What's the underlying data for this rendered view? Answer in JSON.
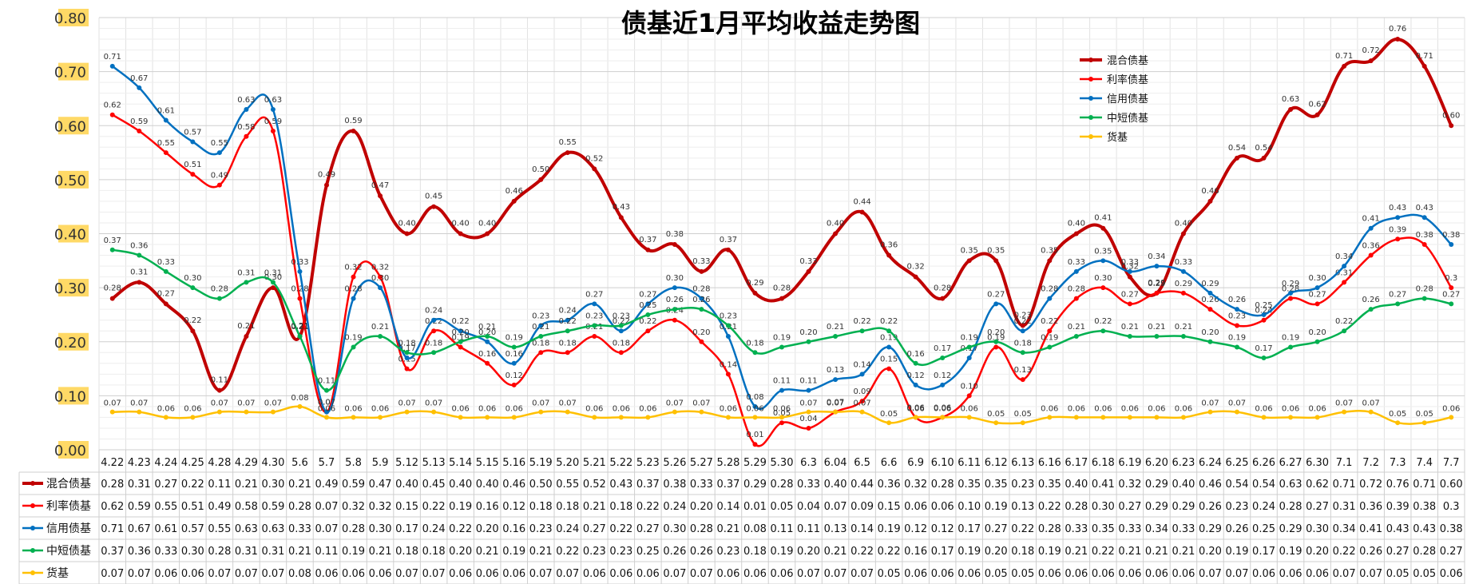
{
  "chart_data": {
    "type": "line",
    "title": "债基近1月平均收益走势图",
    "xlabel": "",
    "ylabel": "",
    "ylim": [
      0,
      0.8
    ],
    "yticks": [
      "0.00",
      "0.10",
      "0.20",
      "0.30",
      "0.40",
      "0.50",
      "0.60",
      "0.70",
      "0.80"
    ],
    "grid": true,
    "legend_position": "top-right",
    "categories": [
      "4.22",
      "4.23",
      "4.24",
      "4.25",
      "4.28",
      "4.29",
      "4.30",
      "5.6",
      "5.7",
      "5.8",
      "5.9",
      "5.12",
      "5.13",
      "5.14",
      "5.15",
      "5.16",
      "5.19",
      "5.20",
      "5.21",
      "5.22",
      "5.23",
      "5.26",
      "5.27",
      "5.28",
      "5.29",
      "5.30",
      "6.3",
      "6.04",
      "6.5",
      "6.6",
      "6.9",
      "6.10",
      "6.11",
      "6.12",
      "6.13",
      "6.16",
      "6.17",
      "6.18",
      "6.19",
      "6.20",
      "6.23",
      "6.24",
      "6.25",
      "6.26",
      "6.27",
      "6.30",
      "7.1",
      "7.2",
      "7.3",
      "7.4",
      "7.7"
    ],
    "series": [
      {
        "name": "混合债基",
        "color": "#C00000",
        "values": [
          0.28,
          0.31,
          0.27,
          0.22,
          0.11,
          0.21,
          0.3,
          0.21,
          0.49,
          0.59,
          0.47,
          0.4,
          0.45,
          0.4,
          0.4,
          0.46,
          0.5,
          0.55,
          0.52,
          0.43,
          0.37,
          0.38,
          0.33,
          0.37,
          0.29,
          0.28,
          0.33,
          0.4,
          0.44,
          0.36,
          0.32,
          0.28,
          0.35,
          0.35,
          0.23,
          0.35,
          0.4,
          0.41,
          0.32,
          0.29,
          0.4,
          0.46,
          0.54,
          0.54,
          0.63,
          0.62,
          0.71,
          0.72,
          0.76,
          0.71,
          0.6
        ],
        "labels": [
          "0.28",
          "0.31",
          "0.27",
          "0.22",
          "0.11",
          "0.21",
          "0.30",
          "0.21",
          "0.49",
          "0.59",
          "0.47",
          "0.40",
          "0.45",
          "0.40",
          "0.40",
          "0.46",
          "0.50",
          "0.55",
          "0.52",
          "0.43",
          "0.37",
          "0.38",
          "0.33",
          "0.37",
          "0.29",
          "0.28",
          "0.33",
          "0.40",
          "0.44",
          "0.36",
          "0.32",
          "0.28",
          "0.35",
          "0.35",
          "0.23",
          "0.35",
          "0.40",
          "0.41",
          "0.32",
          "0.29",
          "0.40",
          "0.46",
          "0.54",
          "0.54",
          "0.63",
          "0.62",
          "0.71",
          "0.72",
          "0.76",
          "0.71",
          "0.60"
        ]
      },
      {
        "name": "利率债基",
        "color": "#FF0000",
        "values": [
          0.62,
          0.59,
          0.55,
          0.51,
          0.49,
          0.58,
          0.59,
          0.28,
          0.07,
          0.32,
          0.32,
          0.15,
          0.22,
          0.19,
          0.16,
          0.12,
          0.18,
          0.18,
          0.21,
          0.18,
          0.22,
          0.24,
          0.2,
          0.14,
          0.01,
          0.05,
          0.04,
          0.07,
          0.09,
          0.15,
          0.06,
          0.06,
          0.1,
          0.19,
          0.13,
          0.22,
          0.28,
          0.3,
          0.27,
          0.29,
          0.29,
          0.26,
          0.23,
          0.24,
          0.28,
          0.27,
          0.31,
          0.36,
          0.39,
          0.38,
          0.3
        ],
        "labels": [
          "0.62",
          "0.59",
          "0.55",
          "0.51",
          "0.49",
          "0.58",
          "0.59",
          "0.28",
          "0.07",
          "0.32",
          "0.32",
          "0.15",
          "0.22",
          "0.19",
          "0.16",
          "0.12",
          "0.18",
          "0.18",
          "0.21",
          "0.18",
          "0.22",
          "0.24",
          "0.20",
          "0.14",
          "0.01",
          "0.05",
          "0.04",
          "0.07",
          "0.09",
          "0.15",
          "0.06",
          "0.06",
          "0.10",
          "0.19",
          "0.13",
          "0.22",
          "0.28",
          "0.30",
          "0.27",
          "0.29",
          "0.29",
          "0.26",
          "0.23",
          "0.24",
          "0.28",
          "0.27",
          "0.31",
          "0.36",
          "0.39",
          "0.38",
          "0.3"
        ]
      },
      {
        "name": "信用债基",
        "color": "#0070C0",
        "values": [
          0.71,
          0.67,
          0.61,
          0.57,
          0.55,
          0.63,
          0.63,
          0.33,
          0.07,
          0.28,
          0.3,
          0.17,
          0.24,
          0.22,
          0.2,
          0.16,
          0.23,
          0.24,
          0.27,
          0.22,
          0.27,
          0.3,
          0.28,
          0.21,
          0.08,
          0.11,
          0.11,
          0.13,
          0.14,
          0.19,
          0.12,
          0.12,
          0.17,
          0.27,
          0.22,
          0.28,
          0.33,
          0.35,
          0.33,
          0.34,
          0.33,
          0.29,
          0.26,
          0.25,
          0.29,
          0.3,
          0.34,
          0.41,
          0.43,
          0.43,
          0.38
        ],
        "labels": [
          "0.71",
          "0.67",
          "0.61",
          "0.57",
          "0.55",
          "0.63",
          "0.63",
          "0.33",
          "0.07",
          "0.28",
          "0.30",
          "0.17",
          "0.24",
          "0.22",
          "0.20",
          "0.16",
          "0.23",
          "0.24",
          "0.27",
          "0.22",
          "0.27",
          "0.30",
          "0.28",
          "0.21",
          "0.08",
          "0.11",
          "0.11",
          "0.13",
          "0.14",
          "0.19",
          "0.12",
          "0.12",
          "0.17",
          "0.27",
          "0.22",
          "0.28",
          "0.33",
          "0.35",
          "0.33",
          "0.34",
          "0.33",
          "0.29",
          "0.26",
          "0.25",
          "0.29",
          "0.30",
          "0.34",
          "0.41",
          "0.43",
          "0.43",
          "0.38"
        ]
      },
      {
        "name": "中短债基",
        "color": "#00B050",
        "values": [
          0.37,
          0.36,
          0.33,
          0.3,
          0.28,
          0.31,
          0.31,
          0.21,
          0.11,
          0.19,
          0.21,
          0.18,
          0.18,
          0.2,
          0.21,
          0.19,
          0.21,
          0.22,
          0.23,
          0.23,
          0.25,
          0.26,
          0.26,
          0.23,
          0.18,
          0.19,
          0.2,
          0.21,
          0.22,
          0.22,
          0.16,
          0.17,
          0.19,
          0.2,
          0.18,
          0.19,
          0.21,
          0.22,
          0.21,
          0.21,
          0.21,
          0.2,
          0.19,
          0.17,
          0.19,
          0.2,
          0.22,
          0.26,
          0.27,
          0.28,
          0.27
        ],
        "labels": [
          "0.37",
          "0.36",
          "0.33",
          "0.30",
          "0.28",
          "0.31",
          "0.31",
          "0.21",
          "0.11",
          "0.19",
          "0.21",
          "0.18",
          "0.18",
          "0.20",
          "0.21",
          "0.19",
          "0.21",
          "0.22",
          "0.23",
          "0.23",
          "0.25",
          "0.26",
          "0.26",
          "0.23",
          "0.18",
          "0.19",
          "0.20",
          "0.21",
          "0.22",
          "0.22",
          "0.16",
          "0.17",
          "0.19",
          "0.20",
          "0.18",
          "0.19",
          "0.21",
          "0.22",
          "0.21",
          "0.21",
          "0.21",
          "0.20",
          "0.19",
          "0.17",
          "0.19",
          "0.20",
          "0.22",
          "0.26",
          "0.27",
          "0.28",
          "0.27"
        ]
      },
      {
        "name": "货基",
        "color": "#FFC000",
        "values": [
          0.07,
          0.07,
          0.06,
          0.06,
          0.07,
          0.07,
          0.07,
          0.08,
          0.06,
          0.06,
          0.06,
          0.07,
          0.07,
          0.06,
          0.06,
          0.06,
          0.07,
          0.07,
          0.06,
          0.06,
          0.06,
          0.07,
          0.07,
          0.06,
          0.06,
          0.06,
          0.07,
          0.07,
          0.07,
          0.05,
          0.06,
          0.06,
          0.06,
          0.05,
          0.05,
          0.06,
          0.06,
          0.06,
          0.06,
          0.06,
          0.06,
          0.07,
          0.07,
          0.06,
          0.06,
          0.06,
          0.07,
          0.07,
          0.05,
          0.05,
          0.06
        ],
        "labels": [
          "0.07",
          "0.07",
          "0.06",
          "0.06",
          "0.07",
          "0.07",
          "0.07",
          "0.08",
          "0.06",
          "0.06",
          "0.06",
          "0.07",
          "0.07",
          "0.06",
          "0.06",
          "0.06",
          "0.07",
          "0.07",
          "0.06",
          "0.06",
          "0.06",
          "0.07",
          "0.07",
          "0.06",
          "0.06",
          "0.06",
          "0.07",
          "0.07",
          "0.07",
          "0.05",
          "0.06",
          "0.06",
          "0.06",
          "0.05",
          "0.05",
          "0.06",
          "0.06",
          "0.06",
          "0.06",
          "0.06",
          "0.06",
          "0.07",
          "0.07",
          "0.06",
          "0.06",
          "0.06",
          "0.07",
          "0.07",
          "0.05",
          "0.05",
          "0.06"
        ]
      }
    ]
  }
}
